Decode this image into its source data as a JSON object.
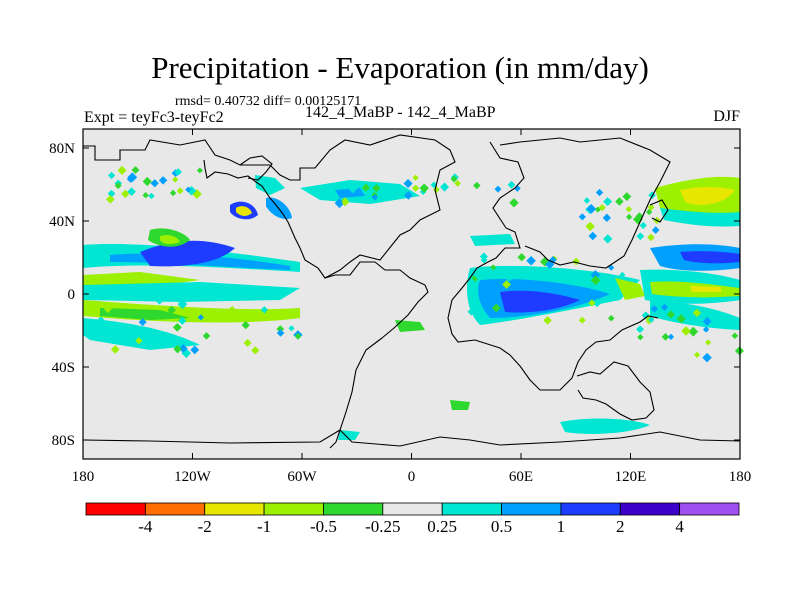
{
  "title": "Precipitation - Evaporation (in mm/day)",
  "stats_line": "rmsd= 0.40732 diff= 0.00125171",
  "experiment": "Expt = teyFc3-teyFc2",
  "experiment_names": "142_4_MaBP - 142_4_MaBP",
  "season": "DJF",
  "colors": {
    "ocean_background": "#e8e8e8",
    "coastline": "#000000",
    "bin_colors": [
      "#ff0000",
      "#ff6e00",
      "#e6e600",
      "#9cf000",
      "#2ed82e",
      "#e8e8e8",
      "#00e6d2",
      "#00a0ff",
      "#1e3cff",
      "#3c00c8",
      "#a050f0"
    ]
  },
  "x_ticks": [
    "180",
    "120W",
    "60W",
    "0",
    "60E",
    "120E",
    "180"
  ],
  "y_ticks": [
    "80N",
    "40N",
    "0",
    "40S",
    "80S"
  ],
  "colorbar": {
    "labels": [
      "-4",
      "-2",
      "-1",
      "-0.5",
      "-0.25",
      "0.25",
      "0.5",
      "1",
      "2",
      "4"
    ],
    "colors": [
      "#ff0000",
      "#ff6e00",
      "#e6e600",
      "#9cf000",
      "#2ed82e",
      "#e8e8e8",
      "#00e6d2",
      "#00a0ff",
      "#1e3cff",
      "#3c00c8",
      "#a050f0"
    ]
  }
}
